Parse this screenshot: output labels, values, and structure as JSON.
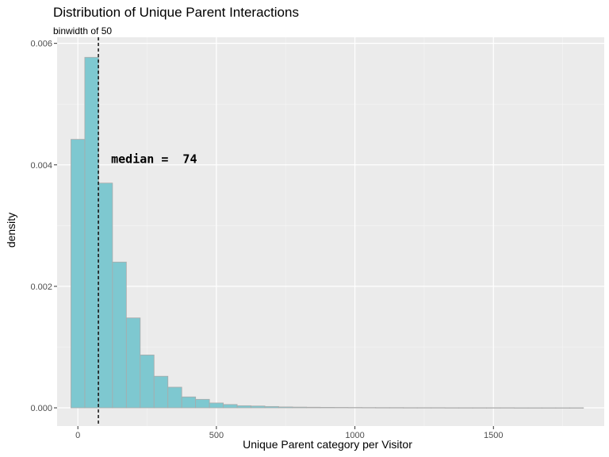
{
  "chart_data": {
    "type": "bar",
    "title": "Distribution of Unique Parent Interactions",
    "subtitle": "binwidth of 50",
    "xlabel": "Unique Parent category per Visitor",
    "ylabel": "density",
    "xlim": [
      -75,
      1900
    ],
    "ylim": [
      -0.0003,
      0.0061
    ],
    "x_ticks": [
      0,
      500,
      1000,
      1500
    ],
    "x_tick_labels": [
      "0",
      "500",
      "1000",
      "1500"
    ],
    "y_ticks": [
      0,
      0.002,
      0.004,
      0.006
    ],
    "y_tick_labels": [
      "0.000",
      "0.002",
      "0.004",
      "0.006"
    ],
    "bin_start": -25,
    "binwidth": 50,
    "values": [
      0.00442,
      0.00577,
      0.0037,
      0.0024,
      0.00148,
      0.00087,
      0.00052,
      0.00034,
      0.00018,
      0.00014,
      8e-05,
      5.5e-05,
      3.5e-05,
      3e-05,
      2.2e-05,
      1.5e-05,
      1.2e-05,
      1e-05,
      8e-06,
      7e-06,
      6e-06,
      5e-06,
      4e-06,
      4e-06,
      3e-06,
      3e-06,
      3e-06,
      2e-06,
      2e-06,
      2e-06,
      2e-06,
      2e-06,
      1e-06,
      1e-06,
      1e-06,
      1e-06,
      1e-06
    ],
    "median": 74,
    "annotation": "median =  74",
    "annotation_x": 120,
    "annotation_y": 0.00398,
    "grid": true,
    "colors": {
      "panel_bg": "#ebebeb",
      "grid_major": "#ffffff",
      "grid_minor": "#f5f5f5",
      "bar_fill": "#7ec8d0",
      "bar_stroke": "#aaaaaa",
      "median_line": "#000000"
    }
  }
}
